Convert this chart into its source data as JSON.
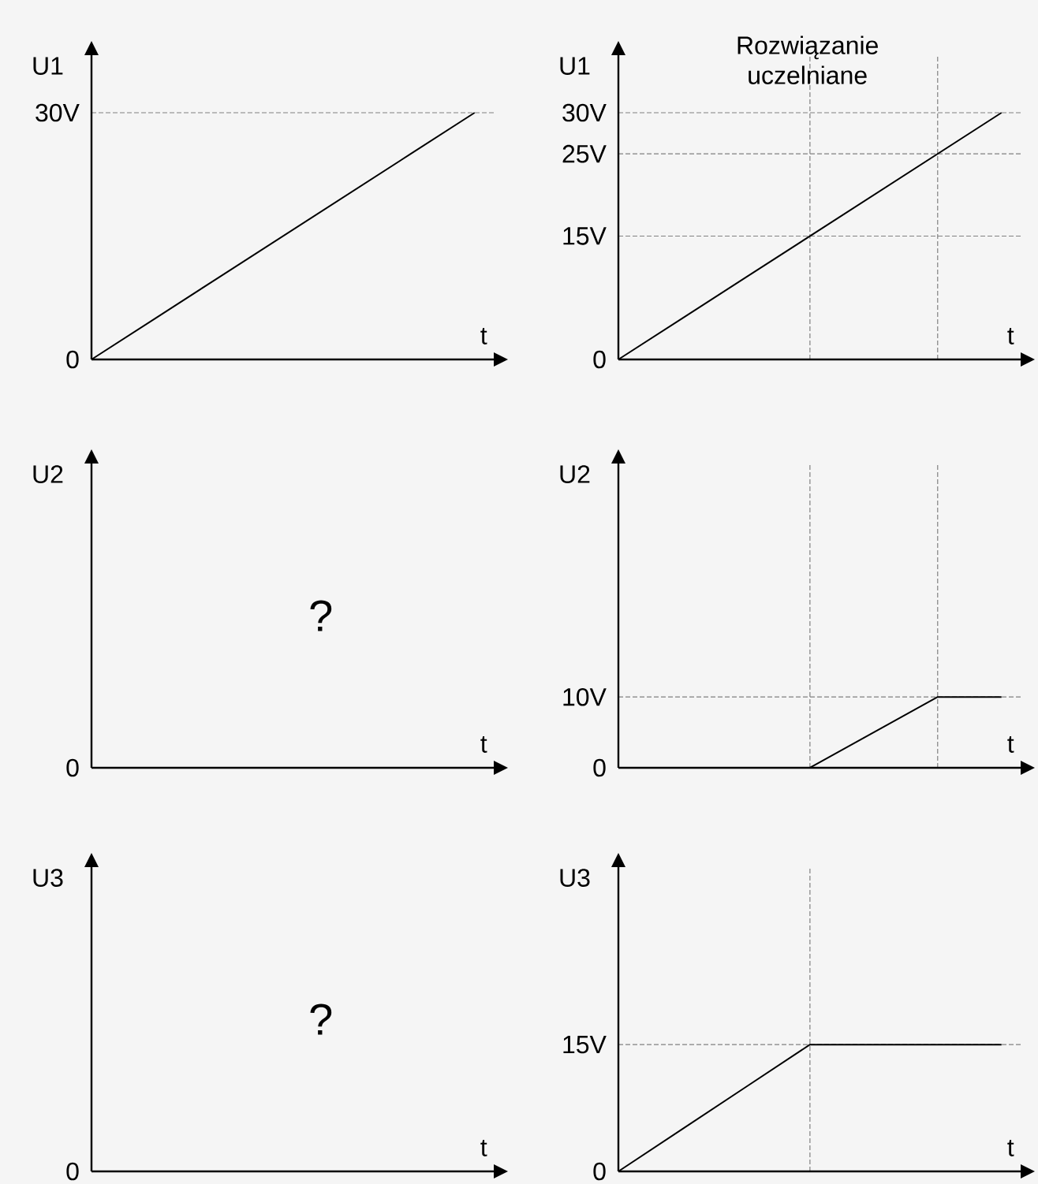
{
  "chart_data": [
    {
      "type": "line",
      "ylabel": "U1",
      "xlabel": "t",
      "categories": [
        null,
        null,
        null,
        null,
        null,
        null,
        null
      ],
      "series": [
        {
          "color": "#000000",
          "values": [
            0,
            5,
            10,
            15,
            20,
            25,
            30
          ]
        }
      ],
      "ylim": [
        0,
        37
      ],
      "yticks": [
        {
          "value": 0,
          "label": "0"
        },
        {
          "value": 30,
          "label": "30V"
        }
      ],
      "tick_labels": "y",
      "ref_lines": [
        {
          "axis": "y",
          "value": 30
        }
      ]
    },
    {
      "type": "line",
      "title": "Rozwiązanie uczelniane",
      "ylabel": "U1",
      "xlabel": "t",
      "categories": [
        null,
        null,
        null,
        null,
        null,
        null,
        null
      ],
      "series": [
        {
          "color": "#000000",
          "values": [
            0,
            5,
            10,
            15,
            20,
            25,
            30
          ]
        }
      ],
      "ylim": [
        0,
        37
      ],
      "yticks": [
        {
          "value": 0,
          "label": "0"
        },
        {
          "value": 15,
          "label": "15V"
        },
        {
          "value": 25,
          "label": "25V"
        },
        {
          "value": 30,
          "label": "30V"
        }
      ],
      "tick_labels": "y",
      "ref_lines": [
        {
          "axis": "y",
          "value": 30
        },
        {
          "axis": "y",
          "value": 25
        },
        {
          "axis": "y",
          "value": 15
        }
      ]
    },
    {
      "type": "other",
      "ylabel": "U2",
      "xlabel": "t",
      "annotations": [
        "0",
        "?"
      ]
    },
    {
      "type": "line",
      "ylabel": "U2",
      "xlabel": "t",
      "categories": [
        null,
        null,
        null,
        null,
        null,
        null,
        null
      ],
      "series": [
        {
          "color": "#000000",
          "values": [
            0,
            0,
            0,
            0,
            5,
            10,
            10
          ]
        }
      ],
      "ylim": [
        0,
        43
      ],
      "yticks": [
        {
          "value": 0,
          "label": "0"
        },
        {
          "value": 10,
          "label": "10V"
        }
      ],
      "tick_labels": "y",
      "ref_lines": [
        {
          "axis": "y",
          "value": 10
        }
      ]
    },
    {
      "type": "other",
      "ylabel": "U3",
      "xlabel": "t",
      "annotations": [
        "0",
        "?"
      ]
    },
    {
      "type": "line",
      "ylabel": "U3",
      "xlabel": "t",
      "categories": [
        null,
        null,
        null,
        null,
        null,
        null,
        null
      ],
      "series": [
        {
          "color": "#000000",
          "values": [
            0,
            5,
            10,
            15,
            15,
            15,
            15
          ]
        }
      ],
      "ylim": [
        0,
        36
      ],
      "yticks": [
        {
          "value": 0,
          "label": "0"
        },
        {
          "value": 15,
          "label": "15V"
        }
      ],
      "tick_labels": "y",
      "ref_lines": [
        {
          "axis": "y",
          "value": 15
        }
      ]
    }
  ]
}
